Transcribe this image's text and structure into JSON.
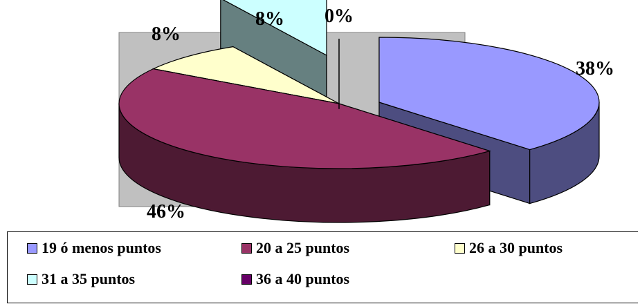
{
  "chart_data": {
    "type": "pie",
    "style": "3d-exploded",
    "categories": [
      "19 ó menos puntos",
      "20 a 25 puntos",
      "26 a 30 puntos",
      "31 a 35 puntos",
      "36 a 40 puntos"
    ],
    "values": [
      38,
      46,
      8,
      8,
      0
    ],
    "labels": [
      "38%",
      "46%",
      "8%",
      "8%",
      "0%"
    ],
    "colors": [
      "#9999FF",
      "#993366",
      "#FFFFCC",
      "#CCFFFF",
      "#660066"
    ],
    "side_colors": [
      "#4D4D80",
      "#4D1A33",
      "#808066",
      "#668080",
      "#330033"
    ],
    "plot_background": "#C0C0C0",
    "legend_position": "bottom"
  }
}
